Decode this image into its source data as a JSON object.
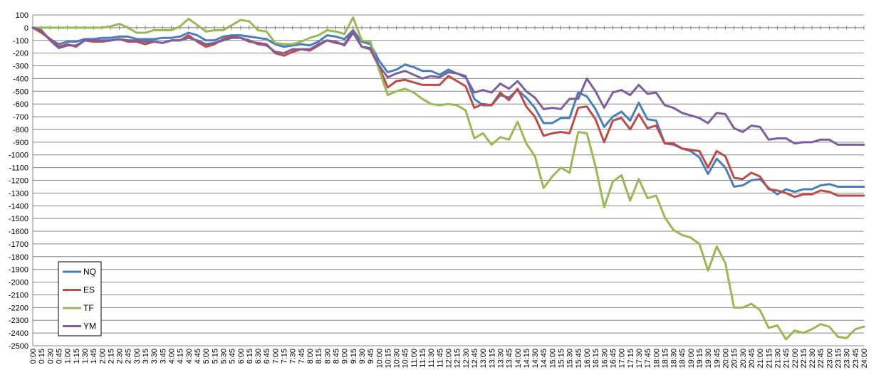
{
  "chart_data": {
    "type": "line",
    "title": "",
    "xlabel": "",
    "ylabel": "",
    "ylim": [
      -2500,
      100
    ],
    "y_ticks": [
      100,
      0,
      -100,
      -200,
      -300,
      -400,
      -500,
      -600,
      -700,
      -800,
      -900,
      -1000,
      -1100,
      -1200,
      -1300,
      -1400,
      -1500,
      -1600,
      -1700,
      -1800,
      -1900,
      -2000,
      -2100,
      -2200,
      -2300,
      -2400,
      -2500
    ],
    "grid": "horizontal",
    "legend_position": "bottom-left",
    "categories": [
      "0:00",
      "0:15",
      "0:30",
      "0:45",
      "1:00",
      "1:15",
      "1:30",
      "1:45",
      "2:00",
      "2:15",
      "2:30",
      "2:45",
      "3:00",
      "3:15",
      "3:30",
      "3:45",
      "4:00",
      "4:15",
      "4:30",
      "4:45",
      "5:00",
      "5:15",
      "5:30",
      "5:45",
      "6:00",
      "6:15",
      "6:30",
      "6:45",
      "7:00",
      "7:15",
      "7:30",
      "7:45",
      "8:00",
      "8:15",
      "8:30",
      "8:45",
      "9:00",
      "9:15",
      "9:30",
      "9:45",
      "10:00",
      "10:15",
      "10:30",
      "10:45",
      "11:00",
      "11:15",
      "11:30",
      "11:45",
      "12:00",
      "12:15",
      "12:30",
      "12:45",
      "13:00",
      "13:15",
      "13:30",
      "13:45",
      "14:00",
      "14:15",
      "14:30",
      "14:45",
      "15:00",
      "15:15",
      "15:30",
      "15:45",
      "16:00",
      "16:15",
      "16:30",
      "16:45",
      "17:00",
      "17:15",
      "17:30",
      "17:45",
      "18:00",
      "18:15",
      "18:30",
      "18:45",
      "19:00",
      "19:15",
      "19:30",
      "19:45",
      "20:00",
      "20:15",
      "20:30",
      "20:45",
      "21:00",
      "21:15",
      "21:30",
      "21:45",
      "22:00",
      "22:15",
      "22:30",
      "22:45",
      "23:00",
      "23:15",
      "23:30",
      "23:45",
      "24:00"
    ],
    "series": [
      {
        "name": "NQ",
        "color": "#4a7ebb",
        "values": [
          0,
          -30,
          -90,
          -130,
          -110,
          -110,
          -90,
          -90,
          -80,
          -80,
          -70,
          -70,
          -90,
          -90,
          -90,
          -80,
          -80,
          -70,
          -40,
          -60,
          -100,
          -100,
          -70,
          -60,
          -60,
          -70,
          -80,
          -90,
          -130,
          -150,
          -140,
          -130,
          -140,
          -110,
          -60,
          -70,
          -90,
          -20,
          -110,
          -130,
          -260,
          -350,
          -330,
          -290,
          -310,
          -340,
          -340,
          -370,
          -330,
          -360,
          -380,
          -560,
          -610,
          -610,
          -530,
          -550,
          -490,
          -550,
          -630,
          -750,
          -750,
          -710,
          -710,
          -510,
          -540,
          -640,
          -780,
          -700,
          -660,
          -730,
          -590,
          -720,
          -730,
          -910,
          -920,
          -950,
          -970,
          -1020,
          -1150,
          -1030,
          -1100,
          -1250,
          -1240,
          -1200,
          -1190,
          -1260,
          -1310,
          -1270,
          -1290,
          -1270,
          -1270,
          -1240,
          -1230,
          -1250,
          -1250,
          -1250,
          -1250
        ]
      },
      {
        "name": "ES",
        "color": "#be4b48",
        "values": [
          0,
          -40,
          -90,
          -150,
          -130,
          -150,
          -100,
          -110,
          -110,
          -100,
          -90,
          -110,
          -110,
          -130,
          -110,
          -120,
          -100,
          -100,
          -60,
          -110,
          -150,
          -130,
          -90,
          -70,
          -80,
          -110,
          -120,
          -130,
          -200,
          -220,
          -190,
          -170,
          -180,
          -140,
          -100,
          -120,
          -130,
          -30,
          -150,
          -170,
          -310,
          -470,
          -420,
          -410,
          -430,
          -450,
          -450,
          -450,
          -380,
          -420,
          -460,
          -630,
          -600,
          -610,
          -510,
          -570,
          -480,
          -620,
          -700,
          -850,
          -830,
          -820,
          -830,
          -630,
          -620,
          -720,
          -900,
          -730,
          -710,
          -800,
          -680,
          -790,
          -770,
          -910,
          -910,
          -950,
          -960,
          -970,
          -1100,
          -970,
          -1010,
          -1180,
          -1190,
          -1140,
          -1170,
          -1270,
          -1280,
          -1300,
          -1330,
          -1310,
          -1310,
          -1280,
          -1290,
          -1320,
          -1320,
          -1320,
          -1320
        ]
      },
      {
        "name": "TF",
        "color": "#98b954",
        "values": [
          0,
          0,
          0,
          0,
          0,
          0,
          0,
          0,
          0,
          10,
          30,
          0,
          -40,
          -40,
          -20,
          -20,
          -20,
          10,
          70,
          20,
          -30,
          -20,
          -20,
          20,
          60,
          50,
          -20,
          -30,
          -120,
          -130,
          -130,
          -110,
          -80,
          -60,
          -20,
          -30,
          -50,
          80,
          -100,
          -110,
          -330,
          -530,
          -500,
          -480,
          -510,
          -560,
          -600,
          -610,
          -600,
          -610,
          -650,
          -870,
          -830,
          -920,
          -860,
          -880,
          -740,
          -910,
          -1010,
          -1260,
          -1170,
          -1100,
          -1140,
          -820,
          -830,
          -1090,
          -1410,
          -1210,
          -1160,
          -1360,
          -1190,
          -1340,
          -1320,
          -1490,
          -1590,
          -1630,
          -1650,
          -1700,
          -1910,
          -1720,
          -1850,
          -2200,
          -2200,
          -2170,
          -2220,
          -2360,
          -2340,
          -2450,
          -2380,
          -2400,
          -2370,
          -2330,
          -2350,
          -2430,
          -2440,
          -2370,
          -2350
        ]
      },
      {
        "name": "YM",
        "color": "#7d5fa0",
        "values": [
          0,
          -20,
          -100,
          -160,
          -140,
          -140,
          -100,
          -100,
          -100,
          -100,
          -90,
          -100,
          -100,
          -110,
          -110,
          -120,
          -100,
          -100,
          -80,
          -100,
          -130,
          -120,
          -100,
          -80,
          -80,
          -100,
          -130,
          -140,
          -190,
          -200,
          -170,
          -170,
          -170,
          -130,
          -100,
          -110,
          -140,
          -40,
          -150,
          -160,
          -300,
          -390,
          -360,
          -340,
          -370,
          -400,
          -380,
          -390,
          -350,
          -360,
          -390,
          -510,
          -490,
          -510,
          -440,
          -480,
          -420,
          -500,
          -550,
          -640,
          -630,
          -640,
          -560,
          -560,
          -400,
          -500,
          -630,
          -510,
          -490,
          -530,
          -450,
          -520,
          -510,
          -610,
          -630,
          -670,
          -690,
          -710,
          -750,
          -670,
          -680,
          -790,
          -820,
          -770,
          -780,
          -880,
          -870,
          -870,
          -910,
          -900,
          -900,
          -880,
          -880,
          -920,
          -920,
          -920,
          -920
        ]
      }
    ]
  }
}
